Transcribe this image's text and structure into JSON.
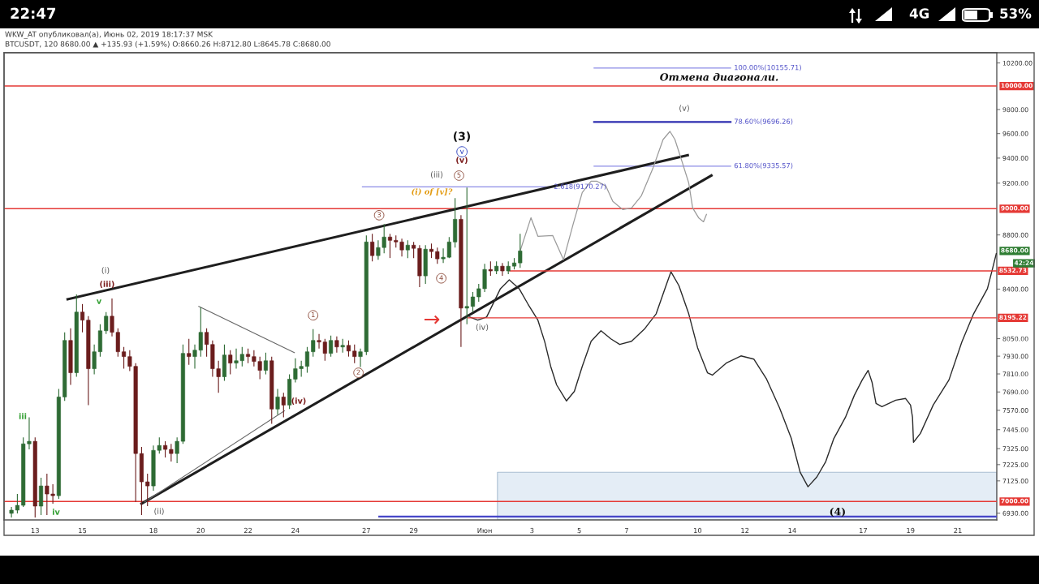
{
  "chart_data": {
    "type": "candlestick",
    "title": "WKW_AT опубликовал(а), Июнь 02, 2019 18:17:37 MSK",
    "subtitle": "BTCUSDT, 120 8680.00 ▲ +135.93 (+1.59%) O:8660.26 H:8712.80 L:8645.78 C:8680.00",
    "log": true,
    "xlim": [
      "2019-05-11T16:30",
      "2019-06-22T15:30"
    ],
    "ylim": [
      6890,
      10290
    ],
    "xticks": [
      {
        "value": "2019-05-13",
        "label": "13"
      },
      {
        "value": "2019-05-15",
        "label": "15"
      },
      {
        "value": "2019-05-18",
        "label": "18"
      },
      {
        "value": "2019-05-20",
        "label": "20"
      },
      {
        "value": "2019-05-22",
        "label": "22"
      },
      {
        "value": "2019-05-24",
        "label": "24"
      },
      {
        "value": "2019-05-27",
        "label": "27"
      },
      {
        "value": "2019-05-29",
        "label": "29"
      },
      {
        "value": "2019-06-01",
        "label": "Июн"
      },
      {
        "value": "2019-06-03",
        "label": "3"
      },
      {
        "value": "2019-06-05",
        "label": "5"
      },
      {
        "value": "2019-06-07",
        "label": "7"
      },
      {
        "value": "2019-06-10",
        "label": "10"
      },
      {
        "value": "2019-06-12",
        "label": "12"
      },
      {
        "value": "2019-06-14",
        "label": "14"
      },
      {
        "value": "2019-06-17",
        "label": "17"
      },
      {
        "value": "2019-06-19",
        "label": "19"
      },
      {
        "value": "2019-06-21",
        "label": "21"
      }
    ],
    "yticks": [
      {
        "value": 10200,
        "label": "10200.00"
      },
      {
        "value": 9800,
        "label": "9800.00"
      },
      {
        "value": 9600,
        "label": "9600.00"
      },
      {
        "value": 9400,
        "label": "9400.00"
      },
      {
        "value": 9200,
        "label": "9200.00"
      },
      {
        "value": 8800,
        "label": "8800.00"
      },
      {
        "value": 8400,
        "label": "8400.00"
      },
      {
        "value": 8050,
        "label": "8050.00"
      },
      {
        "value": 7930,
        "label": "7930.00"
      },
      {
        "value": 7810,
        "label": "7810.00"
      },
      {
        "value": 7690,
        "label": "7690.00"
      },
      {
        "value": 7570,
        "label": "7570.00"
      },
      {
        "value": 7445,
        "label": "7445.00"
      },
      {
        "value": 7325,
        "label": "7325.00"
      },
      {
        "value": 7225,
        "label": "7225.00"
      },
      {
        "value": 7125,
        "label": "7125.00"
      },
      {
        "value": 6930,
        "label": "6930.00"
      }
    ],
    "x": [
      "2019-05-12T00:00",
      "2019-05-12T06:00",
      "2019-05-12T12:00",
      "2019-05-12T18:00",
      "2019-05-13T00:00",
      "2019-05-13T06:00",
      "2019-05-13T12:00",
      "2019-05-13T18:00",
      "2019-05-14T00:00",
      "2019-05-14T06:00",
      "2019-05-14T12:00",
      "2019-05-14T18:00",
      "2019-05-15T00:00",
      "2019-05-15T06:00",
      "2019-05-15T12:00",
      "2019-05-15T18:00",
      "2019-05-16T00:00",
      "2019-05-16T06:00",
      "2019-05-16T12:00",
      "2019-05-16T18:00",
      "2019-05-17T00:00",
      "2019-05-17T06:00",
      "2019-05-17T12:00",
      "2019-05-17T18:00",
      "2019-05-18T00:00",
      "2019-05-18T06:00",
      "2019-05-18T12:00",
      "2019-05-18T18:00",
      "2019-05-19T00:00",
      "2019-05-19T06:00",
      "2019-05-19T12:00",
      "2019-05-19T18:00",
      "2019-05-20T00:00",
      "2019-05-20T06:00",
      "2019-05-20T12:00",
      "2019-05-20T18:00",
      "2019-05-21T00:00",
      "2019-05-21T06:00",
      "2019-05-21T12:00",
      "2019-05-21T18:00",
      "2019-05-22T00:00",
      "2019-05-22T06:00",
      "2019-05-22T12:00",
      "2019-05-22T18:00",
      "2019-05-23T00:00",
      "2019-05-23T06:00",
      "2019-05-23T12:00",
      "2019-05-23T18:00",
      "2019-05-24T00:00",
      "2019-05-24T06:00",
      "2019-05-24T12:00",
      "2019-05-24T18:00",
      "2019-05-25T00:00",
      "2019-05-25T06:00",
      "2019-05-25T12:00",
      "2019-05-25T18:00",
      "2019-05-26T00:00",
      "2019-05-26T06:00",
      "2019-05-26T12:00",
      "2019-05-26T18:00",
      "2019-05-27T00:00",
      "2019-05-27T06:00",
      "2019-05-27T12:00",
      "2019-05-27T18:00",
      "2019-05-28T00:00",
      "2019-05-28T06:00",
      "2019-05-28T12:00",
      "2019-05-28T18:00",
      "2019-05-29T00:00",
      "2019-05-29T06:00",
      "2019-05-29T12:00",
      "2019-05-29T18:00",
      "2019-05-30T00:00",
      "2019-05-30T06:00",
      "2019-05-30T12:00",
      "2019-05-30T18:00",
      "2019-05-31T00:00",
      "2019-05-31T06:00",
      "2019-05-31T12:00",
      "2019-05-31T18:00",
      "2019-06-01T00:00",
      "2019-06-01T06:00",
      "2019-06-01T12:00",
      "2019-06-01T18:00",
      "2019-06-02T00:00",
      "2019-06-02T06:00",
      "2019-06-02T12:00"
    ],
    "ohlc": [
      [
        6929,
        6967,
        6905,
        6948
      ],
      [
        6948,
        7045,
        6929,
        6977
      ],
      [
        6977,
        7396,
        6967,
        7355
      ],
      [
        7355,
        7525,
        7320,
        7371
      ],
      [
        7371,
        7396,
        6905,
        6972
      ],
      [
        6972,
        7144,
        6919,
        7094
      ],
      [
        7094,
        7169,
        6919,
        7045
      ],
      [
        7045,
        7104,
        6987,
        7035
      ],
      [
        7035,
        7710,
        7016,
        7657
      ],
      [
        7657,
        8094,
        7631,
        8038
      ],
      [
        8038,
        8122,
        7737,
        7818
      ],
      [
        7818,
        8362,
        7791,
        8236
      ],
      [
        8236,
        8293,
        8094,
        8179
      ],
      [
        8179,
        8207,
        7604,
        7845
      ],
      [
        7845,
        8010,
        7807,
        7960
      ],
      [
        7960,
        8150,
        7927,
        8105
      ],
      [
        8105,
        8236,
        8083,
        8207
      ],
      [
        8207,
        8333,
        8066,
        8094
      ],
      [
        8094,
        8122,
        7927,
        7960
      ],
      [
        7960,
        7993,
        7845,
        7927
      ],
      [
        7927,
        7971,
        7829,
        7861
      ],
      [
        7861,
        7883,
        6997,
        7294
      ],
      [
        7294,
        7335,
        6919,
        7119
      ],
      [
        7119,
        7169,
        6972,
        7094
      ],
      [
        7094,
        7345,
        7065,
        7314
      ],
      [
        7314,
        7396,
        7294,
        7345
      ],
      [
        7345,
        7371,
        7269,
        7320
      ],
      [
        7320,
        7355,
        7244,
        7294
      ],
      [
        7294,
        7396,
        7234,
        7371
      ],
      [
        7371,
        8010,
        7355,
        7949
      ],
      [
        7949,
        8049,
        7872,
        7927
      ],
      [
        7927,
        8010,
        7845,
        7971
      ],
      [
        7971,
        8270,
        7927,
        8094
      ],
      [
        8094,
        8122,
        7927,
        8010
      ],
      [
        8010,
        8038,
        7791,
        7845
      ],
      [
        7845,
        7899,
        7684,
        7791
      ],
      [
        7791,
        8010,
        7764,
        7938
      ],
      [
        7938,
        7971,
        7807,
        7883
      ],
      [
        7883,
        7982,
        7845,
        7899
      ],
      [
        7899,
        7993,
        7861,
        7943
      ],
      [
        7943,
        7982,
        7883,
        7927
      ],
      [
        7927,
        7971,
        7861,
        7894
      ],
      [
        7894,
        7927,
        7775,
        7834
      ],
      [
        7834,
        7954,
        7807,
        7899
      ],
      [
        7899,
        7927,
        7483,
        7578
      ],
      [
        7578,
        7710,
        7541,
        7657
      ],
      [
        7657,
        7684,
        7525,
        7604
      ],
      [
        7604,
        7807,
        7578,
        7775
      ],
      [
        7775,
        7916,
        7753,
        7845
      ],
      [
        7845,
        7899,
        7791,
        7861
      ],
      [
        7861,
        7993,
        7818,
        7960
      ],
      [
        7960,
        8116,
        7927,
        8038
      ],
      [
        8038,
        8083,
        7982,
        8027
      ],
      [
        8027,
        8049,
        7899,
        7949
      ],
      [
        7949,
        8072,
        7927,
        8038
      ],
      [
        8038,
        8066,
        7954,
        7993
      ],
      [
        7993,
        8049,
        7954,
        8004
      ],
      [
        8004,
        8038,
        7927,
        7965
      ],
      [
        7965,
        8010,
        7883,
        7927
      ],
      [
        7927,
        7982,
        7856,
        7960
      ],
      [
        7960,
        8796,
        7938,
        8747
      ],
      [
        8747,
        8808,
        8603,
        8645
      ],
      [
        8645,
        8759,
        8615,
        8705
      ],
      [
        8705,
        8882,
        8663,
        8784
      ],
      [
        8784,
        8808,
        8627,
        8759
      ],
      [
        8759,
        8796,
        8705,
        8747
      ],
      [
        8747,
        8771,
        8639,
        8687
      ],
      [
        8687,
        8759,
        8627,
        8723
      ],
      [
        8723,
        8747,
        8627,
        8699
      ],
      [
        8699,
        8723,
        8414,
        8496
      ],
      [
        8496,
        8723,
        8438,
        8693
      ],
      [
        8693,
        8735,
        8627,
        8675
      ],
      [
        8675,
        8705,
        8585,
        8621
      ],
      [
        8621,
        8699,
        8591,
        8633
      ],
      [
        8633,
        8784,
        8627,
        8747
      ],
      [
        8747,
        9082,
        8705,
        8919
      ],
      [
        8919,
        8950,
        7993,
        8264
      ],
      [
        8264,
        9165,
        8150,
        8276
      ],
      [
        8276,
        8379,
        8236,
        8344
      ],
      [
        8344,
        8438,
        8310,
        8403
      ],
      [
        8403,
        8585,
        8379,
        8543
      ],
      [
        8543,
        8603,
        8496,
        8532
      ],
      [
        8532,
        8603,
        8508,
        8567
      ],
      [
        8567,
        8591,
        8496,
        8532
      ],
      [
        8532,
        8603,
        8508,
        8567
      ],
      [
        8567,
        8627,
        8543,
        8591
      ],
      [
        8591,
        8808,
        8555,
        8680
      ]
    ],
    "colors": [
      "#2e6b34",
      "#2e6b34",
      "#2e6b34",
      "#2e6b34",
      "#6b1d1d",
      "#2e6b34",
      "#6b1d1d",
      "#6b1d1d",
      "#2e6b34",
      "#2e6b34",
      "#6b1d1d",
      "#2e6b34",
      "#6b1d1d",
      "#6b1d1d",
      "#2e6b34",
      "#2e6b34",
      "#2e6b34",
      "#6b1d1d",
      "#6b1d1d",
      "#6b1d1d",
      "#6b1d1d",
      "#6b1d1d",
      "#6b1d1d",
      "#6b1d1d",
      "#2e6b34",
      "#2e6b34",
      "#6b1d1d",
      "#6b1d1d",
      "#2e6b34",
      "#2e6b34",
      "#6b1d1d",
      "#2e6b34",
      "#2e6b34",
      "#6b1d1d",
      "#6b1d1d",
      "#6b1d1d",
      "#2e6b34",
      "#6b1d1d",
      "#2e6b34",
      "#2e6b34",
      "#6b1d1d",
      "#6b1d1d",
      "#6b1d1d",
      "#2e6b34",
      "#6b1d1d",
      "#2e6b34",
      "#6b1d1d",
      "#2e6b34",
      "#2e6b34",
      "#2e6b34",
      "#2e6b34",
      "#2e6b34",
      "#6b1d1d",
      "#6b1d1d",
      "#2e6b34",
      "#6b1d1d",
      "#2e6b34",
      "#6b1d1d",
      "#6b1d1d",
      "#2e6b34",
      "#2e6b34",
      "#6b1d1d",
      "#2e6b34",
      "#2e6b34",
      "#6b1d1d",
      "#6b1d1d",
      "#6b1d1d",
      "#2e6b34",
      "#6b1d1d",
      "#6b1d1d",
      "#2e6b34",
      "#6b1d1d",
      "#6b1d1d",
      "#2e6b34",
      "#2e6b34",
      "#2e6b34",
      "#6b1d1d",
      "#2e6b34",
      "#2e6b34",
      "#2e6b34",
      "#2e6b34",
      "#6b1d1d",
      "#2e6b34",
      "#6b1d1d",
      "#2e6b34",
      "#2e6b34",
      "#2e6b34"
    ],
    "series": [
      {
        "type": "area",
        "x": [
          "2019-06-01T13:00",
          "2019-06-22T15:30"
        ],
        "values": [
          7178,
          7178
        ],
        "color": "#e4edf6"
      },
      {
        "type": "line",
        "x": [
          "2019-06-05T15:00",
          "2019-06-11T09:30"
        ],
        "values": [
          10155.71,
          10155.71
        ],
        "color": "#8c8ce6"
      },
      {
        "type": "line",
        "x": [
          "2019-06-05T15:00",
          "2019-06-11T09:30"
        ],
        "values": [
          9696.26,
          9696.26
        ],
        "color": "#2d2db0"
      },
      {
        "type": "line",
        "x": [
          "2019-06-05T15:00",
          "2019-06-11T09:30"
        ],
        "values": [
          9335.57,
          9335.57
        ],
        "color": "#8c8ce6"
      },
      {
        "type": "line",
        "x": [
          "2019-05-26T20:00",
          "2019-06-03T21:00"
        ],
        "values": [
          9170.27,
          9170.27
        ],
        "color": "#8c8ce6"
      },
      {
        "type": "line",
        "x": [
          "2019-05-27T13:00",
          "2019-06-22T15:30"
        ],
        "values": [
          6910,
          6910
        ],
        "color": "#4646c8"
      },
      {
        "type": "line",
        "x": [
          "2019-05-14T09:00",
          "2019-06-09T14:00"
        ],
        "values": [
          8327,
          9424
        ],
        "color": "#1e1e1e"
      },
      {
        "type": "line",
        "x": [
          "2019-05-17T12:00",
          "2019-06-10T14:00"
        ],
        "values": [
          6987,
          9260
        ],
        "color": "#1e1e1e"
      },
      {
        "type": "line",
        "x": [
          "2019-05-19T22:00",
          "2019-05-23T23:00"
        ],
        "values": [
          8276,
          7954
        ],
        "color": "#666666"
      },
      {
        "type": "line",
        "x": [
          "2019-05-17T15:00",
          "2019-05-23T13:00"
        ],
        "values": [
          6997,
          7567
        ],
        "color": "#666666"
      },
      {
        "type": "line",
        "x": [
          "2019-06-02T12:00",
          "2019-06-02T23:00",
          "2019-06-03T06:00",
          "2019-06-03T21:00",
          "2019-06-04T08:00",
          "2019-06-04T18:00",
          "2019-06-05T03:00",
          "2019-06-05T12:00",
          "2019-06-05T18:00",
          "2019-06-06T03:00",
          "2019-06-06T10:00",
          "2019-06-06T20:00",
          "2019-06-07T05:00",
          "2019-06-07T15:00",
          "2019-06-08T03:00",
          "2019-06-08T13:00",
          "2019-06-08T20:00",
          "2019-06-09T01:00",
          "2019-06-09T08:00",
          "2019-06-09T15:00",
          "2019-06-09T19:00",
          "2019-06-10T01:00",
          "2019-06-10T06:00",
          "2019-06-10T09:00"
        ],
        "values": [
          8680,
          8931,
          8790,
          8796,
          8615,
          8888,
          9126,
          9215,
          9215,
          9177,
          9057,
          8994,
          9006,
          9101,
          9325,
          9551,
          9618,
          9551,
          9377,
          9202,
          9006,
          8931,
          8900,
          8956
        ],
        "color": "#9a9a9a"
      },
      {
        "type": "line",
        "x": [
          "2019-05-31T09:00",
          "2019-05-31T17:00",
          "2019-06-01T02:00",
          "2019-06-01T16:00",
          "2019-06-02T01:00",
          "2019-06-02T11:00",
          "2019-06-02T20:00",
          "2019-06-03T06:00",
          "2019-06-03T13:00",
          "2019-06-03T19:00",
          "2019-06-04T01:00",
          "2019-06-04T11:00",
          "2019-06-04T19:00",
          "2019-06-05T03:00",
          "2019-06-05T12:00",
          "2019-06-05T22:00",
          "2019-06-06T08:00",
          "2019-06-06T17:00",
          "2019-06-07T05:00",
          "2019-06-07T18:00",
          "2019-06-08T06:00",
          "2019-06-08T16:00",
          "2019-06-08T21:00",
          "2019-06-09T05:00",
          "2019-06-09T15:00",
          "2019-06-10T00:00",
          "2019-06-10T10:00",
          "2019-06-10T15:00",
          "2019-06-11T05:00",
          "2019-06-11T20:00",
          "2019-06-12T09:00",
          "2019-06-12T22:00",
          "2019-06-13T11:00",
          "2019-06-13T23:00",
          "2019-06-14T08:00",
          "2019-06-14T16:00",
          "2019-06-15T01:00",
          "2019-06-15T10:00",
          "2019-06-15T18:00",
          "2019-06-16T06:00",
          "2019-06-16T15:00",
          "2019-06-16T23:00",
          "2019-06-17T05:00",
          "2019-06-17T09:00",
          "2019-06-17T13:00",
          "2019-06-17T19:00",
          "2019-06-18T09:00",
          "2019-06-18T19:00",
          "2019-06-19T00:00",
          "2019-06-19T02:00",
          "2019-06-19T03:00",
          "2019-06-19T10:00",
          "2019-06-19T23:00",
          "2019-06-20T15:00",
          "2019-06-21T04:00",
          "2019-06-21T16:00",
          "2019-06-22T06:00",
          "2019-06-22T11:00",
          "2019-06-22T15:00"
        ],
        "values": [
          8201,
          8179,
          8201,
          8403,
          8467,
          8403,
          8292,
          8179,
          8027,
          7861,
          7737,
          7631,
          7694,
          7861,
          8032,
          8105,
          8049,
          8010,
          8032,
          8116,
          8224,
          8426,
          8526,
          8426,
          8224,
          7988,
          7818,
          7802,
          7883,
          7932,
          7910,
          7775,
          7588,
          7391,
          7178,
          7089,
          7149,
          7244,
          7386,
          7525,
          7668,
          7770,
          7834,
          7753,
          7615,
          7594,
          7636,
          7647,
          7604,
          7525,
          7365,
          7421,
          7604,
          7770,
          8027,
          8224,
          8403,
          8543,
          8660
        ],
        "color": "#2a2a2a"
      },
      {
        "type": "line",
        "x": [
          "2019-06-02T01:30",
          "2019-06-22T15:30"
        ],
        "values": [
          8532.73,
          8532.73
        ],
        "color": "#e53935"
      },
      {
        "type": "line",
        "x": [
          "2019-05-31T07:00",
          "2019-06-22T15:30"
        ],
        "values": [
          8195.22,
          8195.22
        ],
        "color": "#e53935"
      }
    ],
    "ref_lines": [
      {
        "axis": "y",
        "value": 10000,
        "label": "10000.00",
        "color": "#e53935"
      },
      {
        "axis": "y",
        "value": 9000,
        "label": "9000.00",
        "color": "#e53935"
      },
      {
        "axis": "y",
        "value": 7000,
        "label": "7000.00",
        "color": "#e53935"
      }
    ],
    "annotations": [
      "22:47",
      "4G",
      "53%",
      "Отмена диагонали.",
      "(v)",
      "(3)",
      {
        "text": "v",
        "x": "2019-05-31T01:00",
        "y": 9451
      },
      "(v)",
      "(iii)",
      {
        "text": "5",
        "x": "2019-05-30T22:00",
        "y": 9260
      },
      "(i) of [v]?",
      {
        "text": "3",
        "x": "2019-05-27T13:00",
        "y": 8950
      },
      "(i)",
      {
        "text": "(iii)",
        "x": "2019-05-16T01:00",
        "y": 8432
      },
      "v",
      "iii",
      "iv",
      "(ii)",
      {
        "text": "1",
        "x": "2019-05-24T18:00",
        "y": 8213
      },
      "(iv)",
      {
        "text": "2",
        "x": "2019-05-26T16:00",
        "y": 7818
      },
      {
        "text": "4",
        "x": "2019-05-30T04:00",
        "y": 8478
      },
      "(iv)",
      "→",
      {
        "text": "(4)",
        "x": "2019-06-15T22:00",
        "y": 6934
      },
      {
        "text": "100.00%(10155.71)",
        "x": "2019-06-11T09:30",
        "y": 10155.71
      },
      {
        "text": "78.60%(9696.26)",
        "x": "2019-06-11T09:30",
        "y": 9696.26
      },
      {
        "text": "61.80%(9335.57)",
        "x": "2019-06-11T09:30",
        "y": 9335.57
      },
      {
        "text": "2.618(9170.27)",
        "x": "2019-06-03T21:00",
        "y": 9170.27
      },
      {
        "text": "8532.73",
        "x": "2019-06-22T15:30",
        "y": 8532.73
      },
      {
        "text": "8195.22",
        "x": "2019-06-22T15:30",
        "y": 8195.22
      },
      "8680.00",
      "42:24"
    ]
  }
}
